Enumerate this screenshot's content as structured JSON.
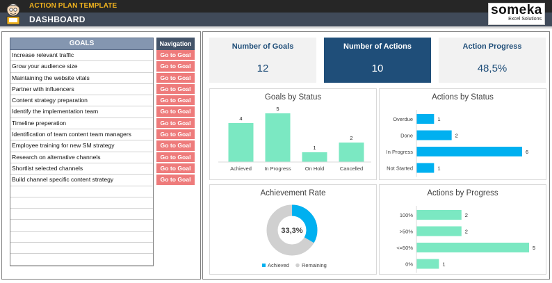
{
  "header": {
    "app_title": "ACTION PLAN TEMPLATE",
    "page_title": "DASHBOARD",
    "brand_name": "someka",
    "brand_sub": "Excel Solutions"
  },
  "goals_panel": {
    "goals_header": "GOALS",
    "nav_header": "Navigation",
    "nav_label": "Go to Goal",
    "goals": [
      "Increase relevant traffic",
      "Grow your audience size",
      "Maintaining the website vitals",
      "Partner with influencers",
      "Content strategy preparation",
      "Identify the implementation team",
      "Timeline preperation",
      "Identification of team content team managers",
      "Employee training for new SM strategy",
      "Research on alternative channels",
      "Shortlist selected channels",
      "Build channel specific content strategy",
      "",
      "",
      "",
      "",
      "",
      "",
      ""
    ]
  },
  "kpis": [
    {
      "label": "Number of Goals",
      "value": "12"
    },
    {
      "label": "Number of Actions",
      "value": "10"
    },
    {
      "label": "Action Progress",
      "value": "48,5%"
    }
  ],
  "colors": {
    "green": "#7be8c2",
    "blue": "#00b0f0",
    "grey": "#d0d0d0",
    "navy": "#1f4e79",
    "nav_red": "#ee7b7b"
  },
  "chart_data": [
    {
      "id": "goals-by-status",
      "type": "bar",
      "title": "Goals by Status",
      "categories": [
        "Achieved",
        "In Progress",
        "On Hold",
        "Cancelled"
      ],
      "values": [
        4,
        5,
        1,
        2
      ],
      "ylim": [
        0,
        5
      ],
      "grid": false
    },
    {
      "id": "actions-by-status",
      "type": "bar",
      "orientation": "horizontal",
      "title": "Actions by Status",
      "categories": [
        "Overdue",
        "Done",
        "In Progress",
        "Not Started"
      ],
      "values": [
        1,
        2,
        6,
        1
      ],
      "xlim": [
        0,
        6
      ],
      "grid": false
    },
    {
      "id": "achievement-rate",
      "type": "pie",
      "title": "Achievement Rate",
      "center_label": "33,3%",
      "labels": [
        "Achieved",
        "Remaining"
      ],
      "values": [
        33.3,
        66.7
      ],
      "legend": "bottom"
    },
    {
      "id": "actions-by-progress",
      "type": "bar",
      "orientation": "horizontal",
      "title": "Actions by Progress",
      "categories": [
        "100%",
        ">50%",
        "<=50%",
        "0%"
      ],
      "values": [
        2,
        2,
        5,
        1
      ],
      "xlim": [
        0,
        5
      ],
      "grid": false
    }
  ]
}
